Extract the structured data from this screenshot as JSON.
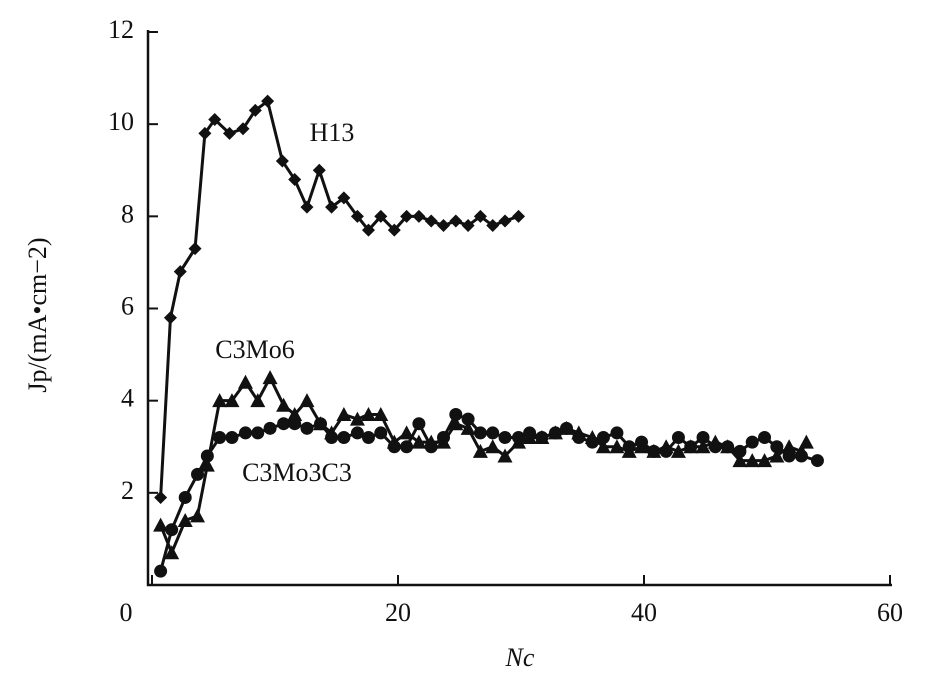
{
  "chart_data": {
    "type": "line",
    "x_label": "Nc",
    "y_label": "Jp/(mA•cm−2)",
    "annotations": [
      "H13",
      "C3Mo6",
      "C3Mo3C3"
    ],
    "xlim": [
      0,
      60
    ],
    "xticks": [
      0,
      20,
      40,
      60
    ],
    "ylim": [
      0,
      12
    ],
    "yticks": [
      2,
      4,
      6,
      8,
      10,
      12
    ],
    "grid": false,
    "series": [
      {
        "name": "H13",
        "color": "#111111",
        "marker": "diamond",
        "x": [
          0.7,
          1.5,
          2.3,
          3.5,
          4.3,
          5.1,
          6.3,
          7.4,
          8.4,
          9.4,
          10.6,
          11.6,
          12.6,
          13.6,
          14.6,
          15.6,
          16.7,
          17.6,
          18.6,
          19.7,
          20.7,
          21.7,
          22.7,
          23.7,
          24.7,
          25.7,
          26.7,
          27.7,
          28.7,
          29.8
        ],
        "values": [
          1.9,
          5.8,
          6.8,
          7.3,
          9.8,
          10.1,
          9.8,
          9.9,
          10.3,
          10.5,
          9.2,
          8.8,
          8.2,
          9.0,
          8.2,
          8.4,
          8.0,
          7.7,
          8.0,
          7.7,
          8.0,
          8.0,
          7.9,
          7.8,
          7.9,
          7.8,
          8.0,
          7.8,
          7.9,
          8.0
        ]
      },
      {
        "name": "C3Mo6",
        "color": "#111111",
        "marker": "triangle",
        "x": [
          0.7,
          1.6,
          2.7,
          3.7,
          4.5,
          5.5,
          6.5,
          7.6,
          8.6,
          9.6,
          10.7,
          11.6,
          12.6,
          13.7,
          14.6,
          15.6,
          16.7,
          17.6,
          18.6,
          19.7,
          20.7,
          21.7,
          22.7,
          23.7,
          24.7,
          25.7,
          26.7,
          27.7,
          28.7,
          29.8,
          30.7,
          31.7,
          32.8,
          33.7,
          34.7,
          35.8,
          36.7,
          37.8,
          38.8,
          39.8,
          40.8,
          41.8,
          42.8,
          43.8,
          44.8,
          45.8,
          46.8,
          47.8,
          48.8,
          49.8,
          50.8,
          51.8,
          52.8,
          53.2
        ],
        "values": [
          1.3,
          0.7,
          1.4,
          1.5,
          2.6,
          4.0,
          4.0,
          4.4,
          4.0,
          4.5,
          3.9,
          3.7,
          4.0,
          3.5,
          3.3,
          3.7,
          3.6,
          3.7,
          3.7,
          3.1,
          3.3,
          3.1,
          3.1,
          3.1,
          3.5,
          3.4,
          2.9,
          3.0,
          2.8,
          3.1,
          3.2,
          3.2,
          3.3,
          3.4,
          3.3,
          3.2,
          3.0,
          3.0,
          2.9,
          3.0,
          2.9,
          3.0,
          2.9,
          3.0,
          3.0,
          3.1,
          3.0,
          2.7,
          2.7,
          2.7,
          2.8,
          3.0,
          2.9,
          3.1
        ]
      },
      {
        "name": "C3Mo3C3",
        "color": "#111111",
        "marker": "circle",
        "x": [
          0.7,
          1.6,
          2.7,
          3.7,
          4.5,
          5.5,
          6.5,
          7.6,
          8.6,
          9.6,
          10.7,
          11.6,
          12.6,
          13.7,
          14.6,
          15.6,
          16.7,
          17.6,
          18.6,
          19.7,
          20.7,
          21.7,
          22.7,
          23.7,
          24.7,
          25.7,
          26.7,
          27.7,
          28.7,
          29.8,
          30.7,
          31.7,
          32.8,
          33.7,
          34.7,
          35.8,
          36.7,
          37.8,
          38.8,
          39.8,
          40.8,
          41.8,
          42.8,
          43.8,
          44.8,
          45.8,
          46.8,
          47.8,
          48.8,
          49.8,
          50.8,
          51.8,
          52.8,
          54.1
        ],
        "values": [
          0.3,
          1.2,
          1.9,
          2.4,
          2.8,
          3.2,
          3.2,
          3.3,
          3.3,
          3.4,
          3.5,
          3.5,
          3.4,
          3.5,
          3.2,
          3.2,
          3.3,
          3.2,
          3.3,
          3.0,
          3.0,
          3.5,
          3.0,
          3.2,
          3.7,
          3.6,
          3.3,
          3.3,
          3.2,
          3.2,
          3.3,
          3.2,
          3.3,
          3.4,
          3.2,
          3.1,
          3.2,
          3.3,
          3.0,
          3.1,
          2.9,
          2.9,
          3.2,
          3.0,
          3.2,
          3.0,
          3.0,
          2.9,
          3.1,
          3.2,
          3.0,
          2.8,
          2.8,
          2.7
        ]
      }
    ]
  }
}
